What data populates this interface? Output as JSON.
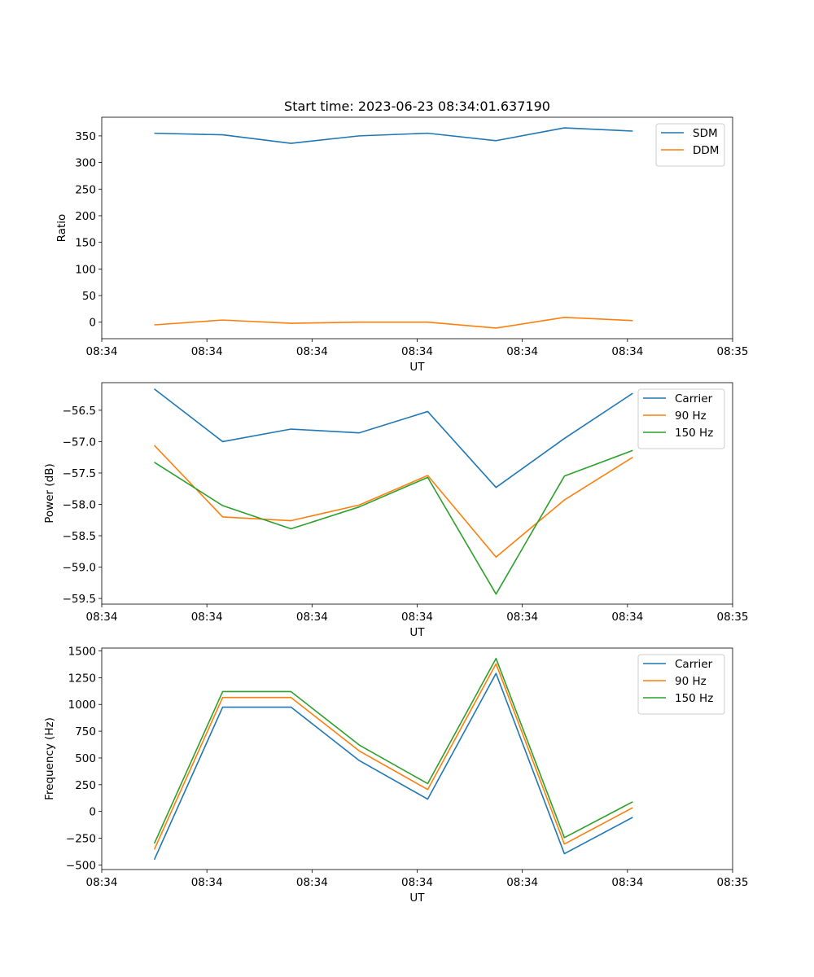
{
  "figure_title": "Start time: 2023-06-23 08:34:01.637190",
  "chart_data": [
    {
      "type": "line",
      "title": "Start time: 2023-06-23 08:34:01.637190",
      "xlabel": "UT",
      "ylabel": "Ratio",
      "xlim": [
        0,
        12
      ],
      "xticks": [
        0,
        2,
        4,
        6,
        8,
        10,
        12
      ],
      "xtick_labels": [
        "08:34",
        "08:34",
        "08:34",
        "08:34",
        "08:34",
        "08:34",
        "08:35"
      ],
      "ylim": [
        -31,
        385
      ],
      "yticks": [
        0,
        50,
        100,
        150,
        200,
        250,
        300,
        350
      ],
      "ytick_labels": [
        "0",
        "50",
        "100",
        "150",
        "200",
        "250",
        "300",
        "350"
      ],
      "x": [
        1,
        2.3,
        3.6,
        4.9,
        6.2,
        7.5,
        8.8,
        10.1
      ],
      "series": [
        {
          "name": "SDM",
          "color": "#1f77b4",
          "values": [
            355,
            352,
            336,
            350,
            355,
            341,
            365,
            359
          ]
        },
        {
          "name": "DDM",
          "color": "#ff7f0e",
          "values": [
            -5,
            4,
            -2,
            0,
            0,
            -11,
            9,
            3
          ]
        }
      ],
      "legend": "top-right",
      "grid": false
    },
    {
      "type": "line",
      "title": "",
      "xlabel": "UT",
      "ylabel": "Power (dB)",
      "xlim": [
        0,
        12
      ],
      "xticks": [
        0,
        2,
        4,
        6,
        8,
        10,
        12
      ],
      "xtick_labels": [
        "08:34",
        "08:34",
        "08:34",
        "08:34",
        "08:34",
        "08:34",
        "08:35"
      ],
      "ylim": [
        -59.59,
        -56.06
      ],
      "yticks": [
        -59.5,
        -59.0,
        -58.5,
        -58.0,
        -57.5,
        -57.0,
        -56.5
      ],
      "ytick_labels": [
        "−59.5",
        "−59.0",
        "−58.5",
        "−58.0",
        "−57.5",
        "−57.0",
        "−56.5"
      ],
      "x": [
        1,
        2.3,
        3.6,
        4.9,
        6.2,
        7.5,
        8.8,
        10.1
      ],
      "series": [
        {
          "name": "Carrier",
          "color": "#1f77b4",
          "values": [
            -56.16,
            -57.0,
            -56.8,
            -56.86,
            -56.52,
            -57.73,
            -56.95,
            -56.23
          ]
        },
        {
          "name": "90 Hz",
          "color": "#ff7f0e",
          "values": [
            -57.06,
            -58.2,
            -58.26,
            -58.01,
            -57.54,
            -58.84,
            -57.93,
            -57.25
          ]
        },
        {
          "name": "150 Hz",
          "color": "#2ca02c",
          "values": [
            -57.33,
            -58.02,
            -58.39,
            -58.04,
            -57.57,
            -59.43,
            -57.55,
            -57.14
          ]
        }
      ],
      "legend": "top-right",
      "grid": false
    },
    {
      "type": "line",
      "title": "",
      "xlabel": "UT",
      "ylabel": "Frequency (Hz)",
      "xlim": [
        0,
        12
      ],
      "xticks": [
        0,
        2,
        4,
        6,
        8,
        10,
        12
      ],
      "xtick_labels": [
        "08:34",
        "08:34",
        "08:34",
        "08:34",
        "08:34",
        "08:34",
        "08:35"
      ],
      "ylim": [
        -543,
        1527
      ],
      "yticks": [
        -500,
        -250,
        0,
        250,
        500,
        750,
        1000,
        1250,
        1500
      ],
      "ytick_labels": [
        "−500",
        "−250",
        "0",
        "250",
        "500",
        "750",
        "1000",
        "1250",
        "1500"
      ],
      "x": [
        1,
        2.3,
        3.6,
        4.9,
        6.2,
        7.5,
        8.8,
        10.1
      ],
      "series": [
        {
          "name": "Carrier",
          "color": "#1f77b4",
          "values": [
            -450,
            975,
            975,
            475,
            115,
            1290,
            -395,
            -55
          ]
        },
        {
          "name": "90 Hz",
          "color": "#ff7f0e",
          "values": [
            -355,
            1065,
            1065,
            565,
            205,
            1380,
            -305,
            35
          ]
        },
        {
          "name": "150 Hz",
          "color": "#2ca02c",
          "values": [
            -300,
            1120,
            1120,
            620,
            260,
            1430,
            -245,
            90
          ]
        }
      ],
      "legend": "top-right",
      "grid": false
    }
  ]
}
